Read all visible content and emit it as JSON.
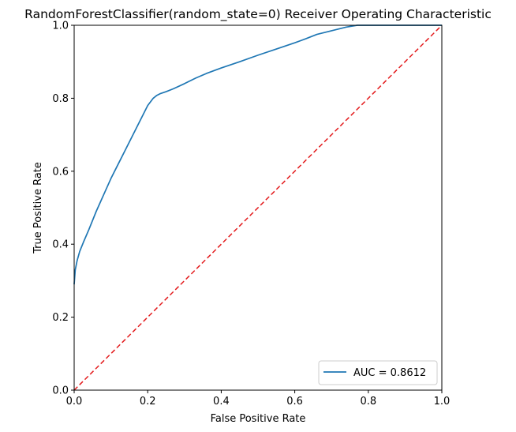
{
  "chart_data": {
    "type": "line",
    "title": "RandomForestClassifier(random_state=0) Receiver Operating Characteristic",
    "xlabel": "False Positive Rate",
    "ylabel": "True Positive Rate",
    "xlim": [
      0,
      1
    ],
    "ylim": [
      0,
      1
    ],
    "xticks": [
      "0.0",
      "0.2",
      "0.4",
      "0.6",
      "0.8",
      "1.0"
    ],
    "yticks": [
      "0.0",
      "0.2",
      "0.4",
      "0.6",
      "0.8",
      "1.0"
    ],
    "grid": false,
    "legend_position": "lower-right",
    "series": [
      {
        "name": "AUC = 0.8612",
        "color": "#1f77b4",
        "style": "solid",
        "x": [
          0.0,
          0.003,
          0.008,
          0.015,
          0.025,
          0.04,
          0.06,
          0.08,
          0.1,
          0.12,
          0.14,
          0.16,
          0.18,
          0.2,
          0.215,
          0.225,
          0.235,
          0.25,
          0.27,
          0.3,
          0.33,
          0.36,
          0.4,
          0.45,
          0.5,
          0.55,
          0.6,
          0.63,
          0.66,
          0.7,
          0.74,
          0.77,
          0.8,
          0.85,
          1.0
        ],
        "y": [
          0.29,
          0.33,
          0.355,
          0.38,
          0.405,
          0.44,
          0.49,
          0.535,
          0.58,
          0.62,
          0.66,
          0.7,
          0.74,
          0.78,
          0.8,
          0.808,
          0.813,
          0.818,
          0.826,
          0.84,
          0.855,
          0.868,
          0.883,
          0.9,
          0.918,
          0.935,
          0.952,
          0.963,
          0.975,
          0.985,
          0.995,
          1.0,
          1.0,
          1.0,
          1.0
        ]
      },
      {
        "name": "",
        "color": "#e31a1c",
        "style": "dashed",
        "x": [
          0,
          1
        ],
        "y": [
          0,
          1
        ]
      }
    ]
  }
}
